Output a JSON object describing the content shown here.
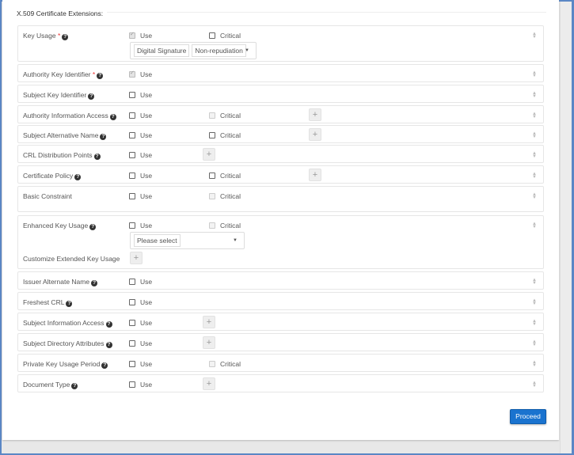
{
  "section_title": "X.509 Certificate Extensions:",
  "use_label": "Use",
  "critical_label": "Critical",
  "key_usage_selected": [
    "Digital Signature",
    "Non-repudiation"
  ],
  "eku_placeholder": "Please select",
  "customize_eku_label": "Customize Extended Key Usage",
  "proceed_label": "Proceed",
  "colors": {
    "primary": "#1a73cf",
    "frame": "#5b87c5",
    "required": "#e33333"
  },
  "extensions": [
    {
      "label": "Key Usage",
      "required": true,
      "help": true,
      "use": "checked-disabled",
      "critical": "enabled",
      "plus": null
    },
    {
      "label": "Authority Key Identifier",
      "required": true,
      "help": true,
      "use": "checked-disabled",
      "critical": null,
      "plus": null
    },
    {
      "label": "Subject Key Identifier",
      "required": false,
      "help": true,
      "use": "unchecked",
      "critical": null,
      "plus": null
    },
    {
      "label": "Authority Information Access",
      "required": false,
      "help": true,
      "use": "unchecked",
      "critical": "disabled",
      "plus": "far"
    },
    {
      "label": "Subject Alternative Name",
      "required": false,
      "help": true,
      "use": "unchecked",
      "critical": "enabled",
      "plus": "far"
    },
    {
      "label": "CRL Distribution Points",
      "required": false,
      "help": true,
      "use": "unchecked",
      "critical": null,
      "plus": "near"
    },
    {
      "label": "Certificate Policy",
      "required": false,
      "help": true,
      "use": "unchecked",
      "critical": "enabled",
      "plus": "far"
    },
    {
      "label": "Basic Constraint",
      "required": false,
      "help": false,
      "use": "unchecked",
      "critical": "disabled",
      "plus": null
    },
    {
      "label": "Enhanced Key Usage",
      "required": false,
      "help": true,
      "use": "unchecked",
      "critical": "disabled",
      "plus": null
    },
    {
      "label": "Issuer Alternate Name",
      "required": false,
      "help": true,
      "use": "unchecked",
      "critical": null,
      "plus": null
    },
    {
      "label": "Freshest CRL",
      "required": false,
      "help": true,
      "use": "unchecked",
      "critical": null,
      "plus": null
    },
    {
      "label": "Subject Information Access",
      "required": false,
      "help": true,
      "use": "unchecked",
      "critical": null,
      "plus": "near"
    },
    {
      "label": "Subject Directory Attributes",
      "required": false,
      "help": true,
      "use": "unchecked",
      "critical": null,
      "plus": "near"
    },
    {
      "label": "Private Key Usage Period",
      "required": false,
      "help": true,
      "use": "unchecked",
      "critical": "disabled",
      "plus": null
    },
    {
      "label": "Document Type",
      "required": false,
      "help": true,
      "use": "unchecked",
      "critical": null,
      "plus": "near"
    }
  ]
}
